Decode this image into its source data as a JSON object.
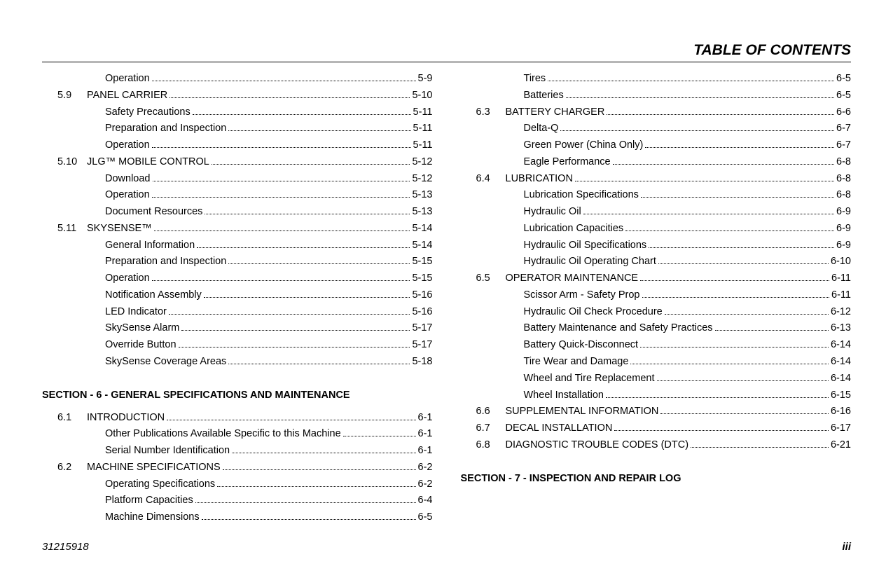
{
  "header_title": "TABLE OF CONTENTS",
  "footer": {
    "doc_number": "31215918",
    "page_number": "iii"
  },
  "columns": [
    {
      "blocks": [
        {
          "type": "entries",
          "entries": [
            {
              "num": "",
              "label": "Operation",
              "page": "5-9",
              "level": 1
            },
            {
              "num": "5.9",
              "label": "PANEL CARRIER",
              "page": "5-10",
              "level": 0
            },
            {
              "num": "",
              "label": "Safety Precautions",
              "page": "5-11",
              "level": 1
            },
            {
              "num": "",
              "label": "Preparation and Inspection",
              "page": "5-11",
              "level": 1
            },
            {
              "num": "",
              "label": "Operation",
              "page": "5-11",
              "level": 1
            },
            {
              "num": "5.10",
              "label": "JLG™ MOBILE CONTROL",
              "page": "5-12",
              "level": 0
            },
            {
              "num": "",
              "label": "Download",
              "page": "5-12",
              "level": 1
            },
            {
              "num": "",
              "label": "Operation",
              "page": "5-13",
              "level": 1
            },
            {
              "num": "",
              "label": "Document Resources",
              "page": "5-13",
              "level": 1
            },
            {
              "num": "5.11",
              "label": "SKYSENSE™",
              "page": "5-14",
              "level": 0
            },
            {
              "num": "",
              "label": "General Information",
              "page": "5-14",
              "level": 1
            },
            {
              "num": "",
              "label": "Preparation and Inspection",
              "page": "5-15",
              "level": 1
            },
            {
              "num": "",
              "label": "Operation",
              "page": "5-15",
              "level": 1
            },
            {
              "num": "",
              "label": "Notification Assembly",
              "page": "5-16",
              "level": 1
            },
            {
              "num": "",
              "label": "LED Indicator",
              "page": "5-16",
              "level": 1
            },
            {
              "num": "",
              "label": "SkySense Alarm",
              "page": "5-17",
              "level": 1
            },
            {
              "num": "",
              "label": "Override Button",
              "page": "5-17",
              "level": 1
            },
            {
              "num": "",
              "label": "SkySense Coverage Areas",
              "page": "5-18",
              "level": 1
            }
          ]
        },
        {
          "type": "heading",
          "text": "SECTION - 6 - GENERAL SPECIFICATIONS AND MAINTENANCE"
        },
        {
          "type": "entries",
          "entries": [
            {
              "num": "6.1",
              "label": "INTRODUCTION",
              "page": "6-1",
              "level": 0
            },
            {
              "num": "",
              "label": "Other Publications Available Specific to this Machine",
              "page": "6-1",
              "level": 1
            },
            {
              "num": "",
              "label": "Serial Number Identification",
              "page": "6-1",
              "level": 1
            },
            {
              "num": "6.2",
              "label": "MACHINE SPECIFICATIONS",
              "page": "6-2",
              "level": 0
            },
            {
              "num": "",
              "label": "Operating Specifications",
              "page": "6-2",
              "level": 1
            },
            {
              "num": "",
              "label": "Platform Capacities",
              "page": "6-4",
              "level": 1
            },
            {
              "num": "",
              "label": "Machine Dimensions",
              "page": "6-5",
              "level": 1
            }
          ]
        }
      ]
    },
    {
      "blocks": [
        {
          "type": "entries",
          "entries": [
            {
              "num": "",
              "label": "Tires",
              "page": "6-5",
              "level": 1
            },
            {
              "num": "",
              "label": "Batteries",
              "page": "6-5",
              "level": 1
            },
            {
              "num": "6.3",
              "label": "BATTERY CHARGER",
              "page": "6-6",
              "level": 0
            },
            {
              "num": "",
              "label": "Delta-Q",
              "page": "6-7",
              "level": 1
            },
            {
              "num": "",
              "label": "Green Power (China Only)",
              "page": "6-7",
              "level": 1
            },
            {
              "num": "",
              "label": "Eagle Performance",
              "page": "6-8",
              "level": 1
            },
            {
              "num": "6.4",
              "label": "LUBRICATION",
              "page": "6-8",
              "level": 0
            },
            {
              "num": "",
              "label": "Lubrication Specifications",
              "page": "6-8",
              "level": 1
            },
            {
              "num": "",
              "label": "Hydraulic Oil",
              "page": "6-9",
              "level": 1
            },
            {
              "num": "",
              "label": "Lubrication Capacities",
              "page": "6-9",
              "level": 1
            },
            {
              "num": "",
              "label": "Hydraulic Oil Specifications",
              "page": "6-9",
              "level": 1
            },
            {
              "num": "",
              "label": "Hydraulic Oil Operating Chart",
              "page": "6-10",
              "level": 1
            },
            {
              "num": "6.5",
              "label": "OPERATOR MAINTENANCE",
              "page": "6-11",
              "level": 0
            },
            {
              "num": "",
              "label": "Scissor Arm - Safety Prop",
              "page": "6-11",
              "level": 1
            },
            {
              "num": "",
              "label": "Hydraulic Oil Check Procedure",
              "page": "6-12",
              "level": 1
            },
            {
              "num": "",
              "label": "Battery Maintenance and Safety Practices",
              "page": "6-13",
              "level": 1
            },
            {
              "num": "",
              "label": "Battery Quick-Disconnect",
              "page": "6-14",
              "level": 1
            },
            {
              "num": "",
              "label": "Tire Wear and Damage",
              "page": "6-14",
              "level": 1
            },
            {
              "num": "",
              "label": "Wheel and Tire Replacement",
              "page": "6-14",
              "level": 1
            },
            {
              "num": "",
              "label": "Wheel Installation",
              "page": "6-15",
              "level": 1
            },
            {
              "num": "6.6",
              "label": "SUPPLEMENTAL INFORMATION",
              "page": "6-16",
              "level": 0
            },
            {
              "num": "6.7",
              "label": "DECAL INSTALLATION",
              "page": "6-17",
              "level": 0
            },
            {
              "num": "6.8",
              "label": "DIAGNOSTIC TROUBLE CODES (DTC)",
              "page": "6-21",
              "level": 0
            }
          ]
        },
        {
          "type": "heading",
          "text": "SECTION - 7 - INSPECTION AND REPAIR LOG"
        }
      ]
    }
  ]
}
